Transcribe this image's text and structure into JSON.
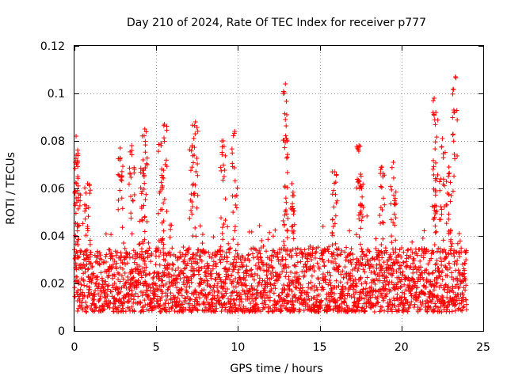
{
  "chart_data": {
    "type": "scatter",
    "title": "Day 210 of 2024, Rate Of TEC Index for receiver p777",
    "xlabel": "GPS time / hours",
    "ylabel": "ROTI / TECUs",
    "xlim": [
      0,
      25
    ],
    "ylim": [
      0,
      0.12
    ],
    "x_ticks": [
      "0",
      "5",
      "10",
      "15",
      "20",
      "25"
    ],
    "y_ticks": [
      "0",
      "0.02",
      "0.04",
      "0.06",
      "0.08",
      "0.1",
      "0.12"
    ],
    "x_tick_values": [
      0,
      5,
      10,
      15,
      20,
      25
    ],
    "y_tick_values": [
      0,
      0.02,
      0.04,
      0.06,
      0.08,
      0.1,
      0.12
    ],
    "grid": true,
    "marker": "+",
    "marker_color": "#ff0000",
    "series": [
      {
        "name": "ROTI",
        "x_range": [
          0,
          24
        ],
        "typical_range": [
          0.008,
          0.035
        ],
        "peaks": [
          {
            "x": 0.1,
            "y": 0.082
          },
          {
            "x": 0.1,
            "y": 0.074
          },
          {
            "x": 0.2,
            "y": 0.065
          },
          {
            "x": 0.8,
            "y": 0.062
          },
          {
            "x": 2.8,
            "y": 0.077
          },
          {
            "x": 3.5,
            "y": 0.078
          },
          {
            "x": 4.3,
            "y": 0.085
          },
          {
            "x": 4.2,
            "y": 0.072
          },
          {
            "x": 5.5,
            "y": 0.087
          },
          {
            "x": 5.3,
            "y": 0.079
          },
          {
            "x": 7.4,
            "y": 0.088
          },
          {
            "x": 7.2,
            "y": 0.078
          },
          {
            "x": 9.1,
            "y": 0.08
          },
          {
            "x": 9.8,
            "y": 0.084
          },
          {
            "x": 12.9,
            "y": 0.104
          },
          {
            "x": 12.9,
            "y": 0.089
          },
          {
            "x": 13.3,
            "y": 0.062
          },
          {
            "x": 15.9,
            "y": 0.067
          },
          {
            "x": 17.4,
            "y": 0.078
          },
          {
            "x": 17.5,
            "y": 0.066
          },
          {
            "x": 18.8,
            "y": 0.069
          },
          {
            "x": 19.5,
            "y": 0.071
          },
          {
            "x": 22.0,
            "y": 0.098
          },
          {
            "x": 22.1,
            "y": 0.092
          },
          {
            "x": 22.5,
            "y": 0.081
          },
          {
            "x": 22.9,
            "y": 0.069
          },
          {
            "x": 23.3,
            "y": 0.107
          }
        ]
      }
    ]
  }
}
